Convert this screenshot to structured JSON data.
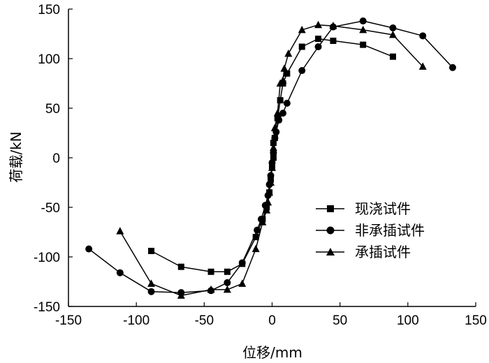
{
  "chart_data": {
    "type": "line",
    "title": "",
    "xlabel": "位移/mm",
    "ylabel": "荷载/kN",
    "xlim": [
      -150,
      150
    ],
    "ylim": [
      -150,
      150
    ],
    "xticks": [
      "-150",
      "-100",
      "-50",
      "0",
      "50",
      "100",
      "150"
    ],
    "yticks": [
      "150",
      "100",
      "50",
      "0",
      "-50",
      "-100",
      "-150"
    ],
    "xtick_values": [
      -150,
      -100,
      -50,
      0,
      50,
      100,
      150
    ],
    "ytick_values": [
      150,
      100,
      50,
      0,
      -50,
      -100,
      -150
    ],
    "grid": false,
    "legend_position": "lower-right",
    "series": [
      {
        "name": "现浇试件",
        "marker": "square",
        "points": [
          [
            -89,
            -94
          ],
          [
            -67,
            -110
          ],
          [
            -45,
            -115
          ],
          [
            -33,
            -115
          ],
          [
            -22,
            -107
          ],
          [
            -12,
            -80
          ],
          [
            -7,
            -62
          ],
          [
            -4,
            -50
          ],
          [
            -2,
            -35
          ],
          [
            -1,
            -22
          ],
          [
            0,
            -10
          ],
          [
            1,
            0
          ],
          [
            1,
            15
          ],
          [
            2,
            20
          ],
          [
            4,
            40
          ],
          [
            6,
            58
          ],
          [
            8,
            75
          ],
          [
            11,
            85
          ],
          [
            22,
            112
          ],
          [
            34,
            120
          ],
          [
            45,
            118
          ],
          [
            67,
            114
          ],
          [
            89,
            102
          ]
        ]
      },
      {
        "name": "非承插试件",
        "marker": "circle",
        "points": [
          [
            -135,
            -92
          ],
          [
            -112,
            -116
          ],
          [
            -89,
            -135
          ],
          [
            -67,
            -136
          ],
          [
            -45,
            -134
          ],
          [
            -33,
            -126
          ],
          [
            -22,
            -106
          ],
          [
            -11,
            -73
          ],
          [
            -8,
            -62
          ],
          [
            -5,
            -48
          ],
          [
            -3,
            -38
          ],
          [
            -2,
            -27
          ],
          [
            -1,
            -18
          ],
          [
            0,
            -5
          ],
          [
            1,
            5
          ],
          [
            2,
            20
          ],
          [
            3,
            26
          ],
          [
            5,
            38
          ],
          [
            8,
            45
          ],
          [
            11,
            55
          ],
          [
            22,
            88
          ],
          [
            34,
            112
          ],
          [
            45,
            132
          ],
          [
            67,
            138
          ],
          [
            89,
            131
          ],
          [
            111,
            123
          ],
          [
            133,
            91
          ]
        ]
      },
      {
        "name": "承插试件",
        "marker": "triangle",
        "points": [
          [
            -112,
            -74
          ],
          [
            -89,
            -127
          ],
          [
            -67,
            -139
          ],
          [
            -45,
            -133
          ],
          [
            -33,
            -133
          ],
          [
            -22,
            -127
          ],
          [
            -12,
            -92
          ],
          [
            -7,
            -65
          ],
          [
            -4,
            -53
          ],
          [
            -3,
            -45
          ],
          [
            -2,
            -35
          ],
          [
            -1,
            -25
          ],
          [
            0,
            -10
          ],
          [
            1,
            10
          ],
          [
            2,
            30
          ],
          [
            4,
            45
          ],
          [
            6,
            75
          ],
          [
            8,
            78
          ],
          [
            9,
            90
          ],
          [
            12,
            105
          ],
          [
            22,
            129
          ],
          [
            34,
            134
          ],
          [
            45,
            133
          ],
          [
            67,
            129
          ],
          [
            89,
            124
          ],
          [
            111,
            92
          ]
        ]
      }
    ]
  }
}
